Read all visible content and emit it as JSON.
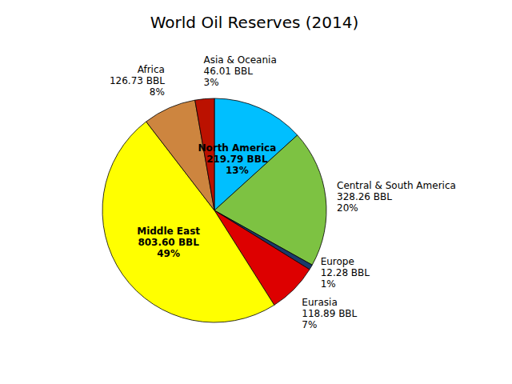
{
  "chart_data": {
    "type": "pie",
    "title": "World Oil Reserves (2014)",
    "categories": [
      "North America",
      "Central & South America",
      "Europe",
      "Eurasia",
      "Middle East",
      "Africa",
      "Asia & Oceania"
    ],
    "values": [
      219.79,
      328.26,
      12.28,
      118.89,
      803.6,
      126.73,
      46.01
    ],
    "value_labels": [
      "219.79 BBL",
      "328.26 BBL",
      "12.28 BBL",
      "118.89 BBL",
      "803.60 BBL",
      "126.73 BBL",
      "46.01 BBL"
    ],
    "percentages": [
      13,
      20,
      1,
      7,
      49,
      8,
      3
    ],
    "percentage_labels": [
      "13%",
      "20%",
      "1%",
      "7%",
      "49%",
      "8%",
      "3%"
    ],
    "colors": [
      "#00BFFF",
      "#7DC242",
      "#1A3A6B",
      "#DD0000",
      "#FFFF00",
      "#CD853F",
      "#BB1100"
    ],
    "data_labels": true
  }
}
